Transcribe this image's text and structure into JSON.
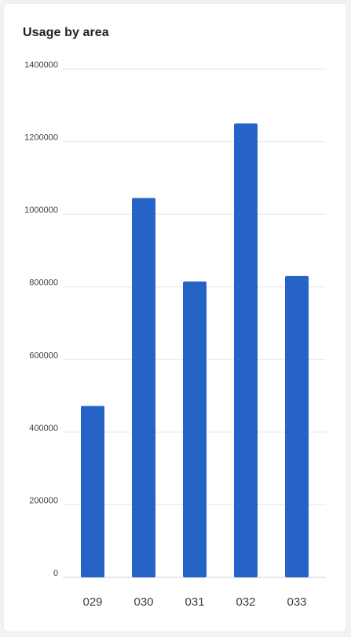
{
  "card": {
    "title": "Usage by area"
  },
  "colors": {
    "bar": "#2563c7",
    "grid": "#e3e5e8",
    "text": "#3c4043"
  },
  "chart_data": {
    "type": "bar",
    "title": "Usage by area",
    "xlabel": "",
    "ylabel": "",
    "categories": [
      "029",
      "030",
      "031",
      "032",
      "033"
    ],
    "values": [
      472000,
      1045000,
      815000,
      1250000,
      830000
    ],
    "ylim": [
      0,
      1400000
    ],
    "yticks": [
      "0",
      "200000",
      "400000",
      "600000",
      "800000",
      "1000000",
      "1200000",
      "1400000"
    ],
    "grid": true,
    "legend": "none"
  }
}
